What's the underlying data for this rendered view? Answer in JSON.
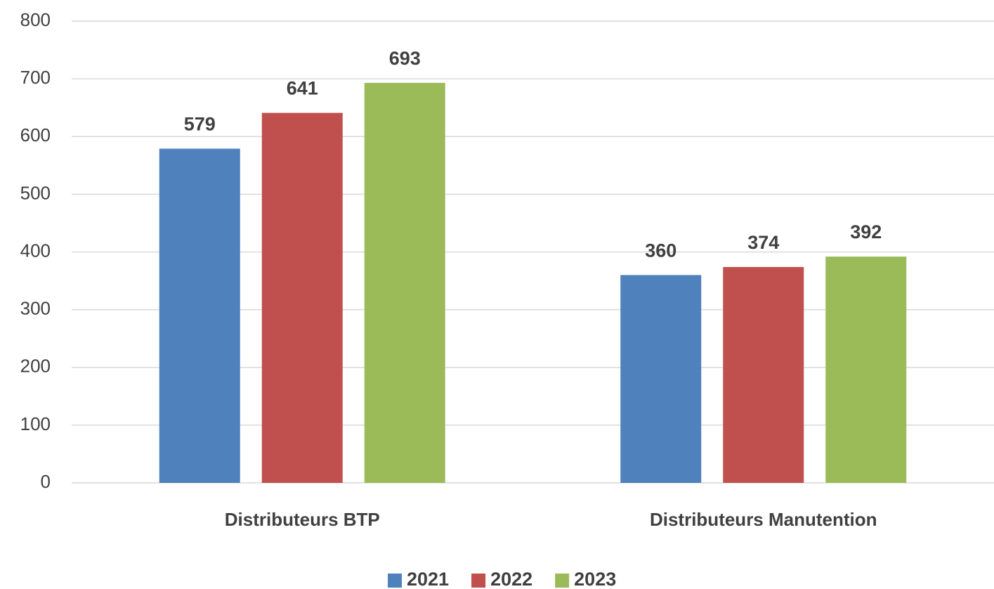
{
  "chart_data": {
    "type": "bar",
    "categories": [
      "Distributeurs BTP",
      "Distributeurs Manutention"
    ],
    "series": [
      {
        "name": "2021",
        "color": "#4f81bd",
        "values": [
          579,
          360
        ]
      },
      {
        "name": "2022",
        "color": "#c0504d",
        "values": [
          641,
          374
        ]
      },
      {
        "name": "2023",
        "color": "#9bbb59",
        "values": [
          693,
          392
        ]
      }
    ],
    "ylim": [
      0,
      800
    ],
    "yticks": [
      0,
      100,
      200,
      300,
      400,
      500,
      600,
      700,
      800
    ],
    "grid": true,
    "legend": "bottom"
  }
}
